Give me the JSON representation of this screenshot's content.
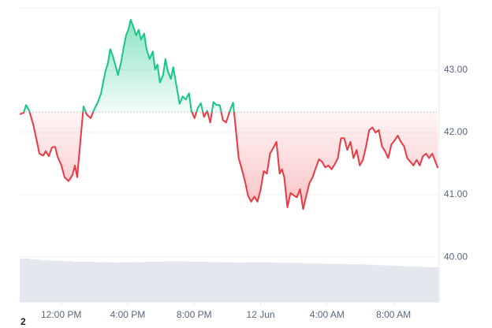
{
  "chart_data": {
    "type": "baseline-line",
    "baseline": 42.33,
    "up_color": "#16c784",
    "down_color": "#ea3943",
    "grid": true,
    "ylim": [
      39.28,
      44.0
    ],
    "yticks": [
      {
        "value": 40,
        "label": "40.00"
      },
      {
        "value": 41,
        "label": "41.00"
      },
      {
        "value": 42,
        "label": "42.00"
      },
      {
        "value": 43,
        "label": "43.00"
      }
    ],
    "xlim": [
      9.5,
      34.7
    ],
    "xticks": [
      {
        "value": 12,
        "label": "12:00 PM"
      },
      {
        "value": 16,
        "label": "4:00 PM"
      },
      {
        "value": 20,
        "label": "8:00 PM"
      },
      {
        "value": 24,
        "label": "12 Jun"
      },
      {
        "value": 28,
        "label": "4:00 AM"
      },
      {
        "value": 32,
        "label": "8:00 AM"
      }
    ],
    "x": [
      9.5,
      9.74,
      9.88,
      10.07,
      10.31,
      10.54,
      10.68,
      10.92,
      11.06,
      11.25,
      11.44,
      11.63,
      11.77,
      12.01,
      12.2,
      12.44,
      12.68,
      12.82,
      12.96,
      13.15,
      13.34,
      13.53,
      13.77,
      14.0,
      14.19,
      14.38,
      14.52,
      14.67,
      14.81,
      14.95,
      15.09,
      15.23,
      15.42,
      15.61,
      15.76,
      15.9,
      16.04,
      16.18,
      16.37,
      16.51,
      16.66,
      16.8,
      16.99,
      17.13,
      17.32,
      17.51,
      17.65,
      17.79,
      17.94,
      18.13,
      18.27,
      18.41,
      18.6,
      18.74,
      18.93,
      19.12,
      19.31,
      19.5,
      19.69,
      19.83,
      20.02,
      20.21,
      20.4,
      20.59,
      20.78,
      20.97,
      21.16,
      21.35,
      21.54,
      21.73,
      21.92,
      22.15,
      22.34,
      22.49,
      22.68,
      22.87,
      23.06,
      23.24,
      23.43,
      23.62,
      23.81,
      24.0,
      24.19,
      24.38,
      24.57,
      24.76,
      24.95,
      25.14,
      25.28,
      25.42,
      25.61,
      25.8,
      25.99,
      26.18,
      26.37,
      26.56,
      26.75,
      26.94,
      27.13,
      27.32,
      27.51,
      27.7,
      27.89,
      28.08,
      28.27,
      28.46,
      28.65,
      28.84,
      29.03,
      29.22,
      29.41,
      29.59,
      29.78,
      29.97,
      30.16,
      30.35,
      30.54,
      30.73,
      30.92,
      31.11,
      31.3,
      31.49,
      31.68,
      31.87,
      32.06,
      32.25,
      32.44,
      32.63,
      32.82,
      33.01,
      33.2,
      33.39,
      33.58,
      33.77,
      33.96,
      34.14,
      34.33,
      34.52,
      34.67
    ],
    "values": [
      42.29,
      42.32,
      42.44,
      42.35,
      42.13,
      41.85,
      41.66,
      41.63,
      41.7,
      41.62,
      41.76,
      41.77,
      41.62,
      41.47,
      41.28,
      41.22,
      41.32,
      41.47,
      41.28,
      41.85,
      42.42,
      42.29,
      42.23,
      42.38,
      42.48,
      42.61,
      42.8,
      42.99,
      43.11,
      43.34,
      43.24,
      43.11,
      42.92,
      43.14,
      43.37,
      43.56,
      43.65,
      43.81,
      43.67,
      43.56,
      43.65,
      43.49,
      43.59,
      43.34,
      43.18,
      43.3,
      43.01,
      43.09,
      42.8,
      42.92,
      43.18,
      42.99,
      42.86,
      43.05,
      42.76,
      42.46,
      42.58,
      42.53,
      42.63,
      42.35,
      42.23,
      42.39,
      42.47,
      42.25,
      42.35,
      42.16,
      42.49,
      42.44,
      42.44,
      42.2,
      42.16,
      42.35,
      42.48,
      42.1,
      41.59,
      41.41,
      41.22,
      40.99,
      40.89,
      40.97,
      40.89,
      41.08,
      41.38,
      41.34,
      41.66,
      41.75,
      41.85,
      41.34,
      41.41,
      41.28,
      40.8,
      41.03,
      40.99,
      40.96,
      41.09,
      40.77,
      40.99,
      41.19,
      41.28,
      41.43,
      41.57,
      41.53,
      41.44,
      41.47,
      41.41,
      41.49,
      41.59,
      41.91,
      41.91,
      41.72,
      41.85,
      41.59,
      41.72,
      41.47,
      41.56,
      41.78,
      42.04,
      42.08,
      42.0,
      42.04,
      41.78,
      41.7,
      41.59,
      41.81,
      41.87,
      41.95,
      41.85,
      41.78,
      41.59,
      41.53,
      41.47,
      41.56,
      41.47,
      41.62,
      41.66,
      41.59,
      41.66,
      41.53,
      41.43
    ],
    "volume": {
      "lim": [
        0,
        100
      ],
      "color": "#e4e8ee",
      "values": [
        100,
        98,
        96,
        95,
        94,
        93,
        93,
        92,
        92,
        91,
        92,
        92,
        93,
        93,
        94,
        94,
        93,
        93,
        92,
        92,
        91,
        91,
        92,
        92,
        91,
        90,
        90,
        89,
        89,
        88,
        88,
        87,
        87,
        86,
        85,
        84,
        83,
        82,
        81,
        80
      ]
    },
    "footer": "2"
  }
}
